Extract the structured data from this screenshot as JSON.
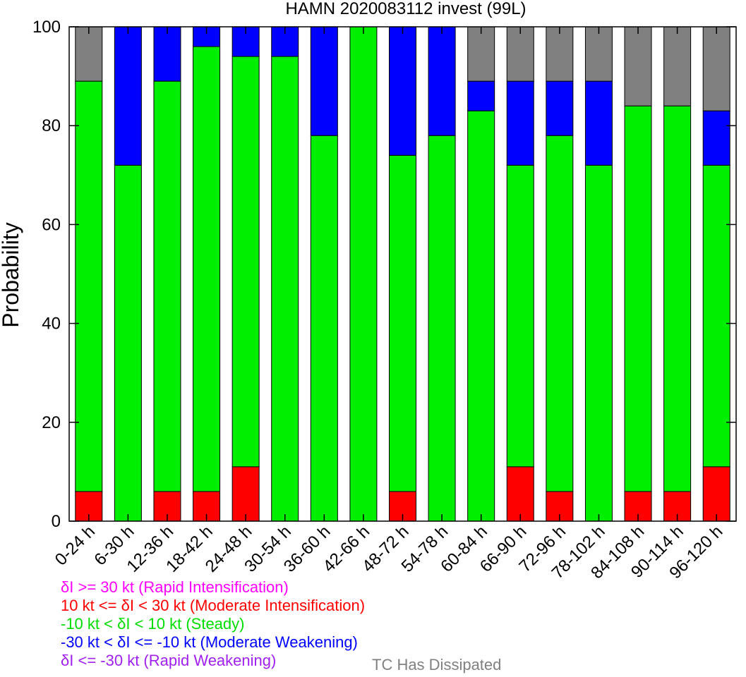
{
  "chart_data": {
    "type": "bar",
    "stacked": true,
    "title": "HAMN 2020083112 invest (99L)",
    "xlabel": "",
    "ylabel": "Probability",
    "ylim": [
      0,
      100
    ],
    "yticks": [
      0,
      20,
      40,
      60,
      80,
      100
    ],
    "grid": false,
    "categories": [
      "0-24 h",
      "6-30 h",
      "12-36 h",
      "18-42 h",
      "24-48 h",
      "30-54 h",
      "36-60 h",
      "42-66 h",
      "48-72 h",
      "54-78 h",
      "60-84 h",
      "66-90 h",
      "72-96 h",
      "78-102 h",
      "84-108 h",
      "90-114 h",
      "96-120 h"
    ],
    "series": [
      {
        "name": "δI >= 30 kt (Rapid Intensification)",
        "color": "#ff00ff",
        "values": [
          0,
          0,
          0,
          0,
          0,
          0,
          0,
          0,
          0,
          0,
          0,
          0,
          0,
          0,
          0,
          0,
          0
        ]
      },
      {
        "name": "10 kt <= δI < 30 kt (Moderate Intensification)",
        "color": "#ff0000",
        "values": [
          6,
          0,
          6,
          6,
          11,
          0,
          0,
          0,
          6,
          0,
          0,
          11,
          6,
          0,
          6,
          6,
          11
        ]
      },
      {
        "name": "-10 kt < δI < 10 kt (Steady)",
        "color": "#00ee00",
        "values": [
          83,
          72,
          83,
          90,
          83,
          94,
          78,
          100,
          68,
          78,
          83,
          61,
          72,
          72,
          78,
          78,
          61
        ]
      },
      {
        "name": "-30 kt < δI <= -10 kt (Moderate Weakening)",
        "color": "#0000ff",
        "values": [
          0,
          28,
          11,
          4,
          6,
          6,
          22,
          0,
          26,
          22,
          6,
          17,
          11,
          17,
          0,
          0,
          11
        ]
      },
      {
        "name": "δI <= -30 kt (Rapid Weakening)",
        "color": "#a020f0",
        "values": [
          0,
          0,
          0,
          0,
          0,
          0,
          0,
          0,
          0,
          0,
          0,
          0,
          0,
          0,
          0,
          0,
          0
        ]
      },
      {
        "name": "TC Has Dissipated",
        "color": "#808080",
        "values": [
          11,
          0,
          0,
          0,
          0,
          0,
          0,
          0,
          0,
          0,
          11,
          11,
          11,
          11,
          16,
          16,
          17
        ]
      }
    ],
    "legend_position": "bottom-left"
  }
}
